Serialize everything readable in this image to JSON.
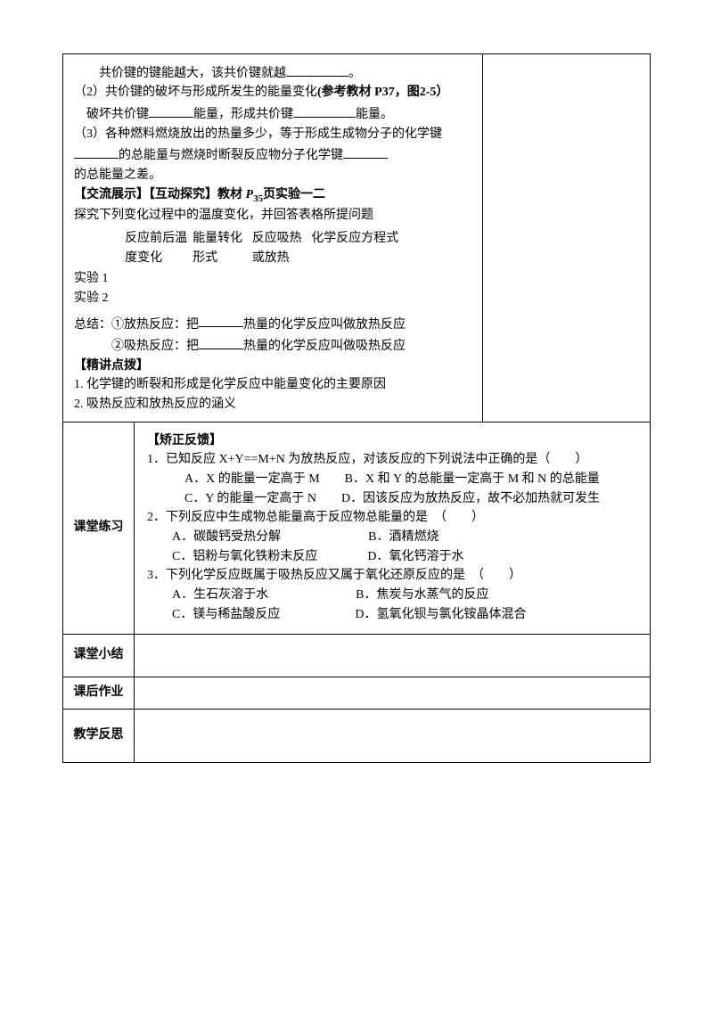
{
  "top": {
    "line1_indent": "共价键的键能越大，该共价键就越",
    "line1_end": "。",
    "line2": "（2）共价键的破坏与形成所发生的能量变化",
    "line2_bold": "(参考教材 P37，图2-5）",
    "line3_a": "破坏共价键",
    "line3_b": "能量，形成共价键",
    "line3_c": "能量。",
    "line4": "（3）各种燃料燃烧放出的热量多少，等于形成生成物分子的化学键",
    "line4_b": "的总能量与燃烧时断裂反应物分子化学键",
    "line5": "的总能量之差。",
    "ex_title_a": "【交流展示】【互动探究】教材 ",
    "ex_title_b": "P",
    "ex_title_sub": "35",
    "ex_title_c": "页实验一二",
    "ex_intro": "探究下列变化过程中的温度变化，并回答表格所提问题",
    "th1": "反应前后温度变化",
    "th2": "能量转化形式",
    "th3": "反应吸热或放热",
    "th4": "化学反应方程式",
    "row1": "实验 1",
    "row2": "实验 2",
    "summary1_a": "总结：①放热反应：把",
    "summary1_b": "热量的化学反应叫做放热反应",
    "summary2_a": "②吸热反应：把",
    "summary2_b": "热量的化学反应叫做吸热反应",
    "jj_title": "【精讲点拨】",
    "jj1": "1. 化学键的断裂和形成是化学反应中能量变化的主要原因",
    "jj2": "2. 吸热反应和放热反应的涵义"
  },
  "practice": {
    "header": "课堂练习",
    "title": "【矫正反馈】",
    "q1_a": "1．已知反应 X+Y==M+N 为放热反应，对该反应的下列说法中正确的是（　　）",
    "q1_opt1": "A．X 的能量一定高于 M　　B．X 和 Y 的总能量一定高于 M 和 N 的总能量",
    "q1_opt2": "C．Y 的能量一定高于 N　　D．因该反应为放热反应，故不必加热就可发生",
    "q2": "2．下列反应中生成物总能量高于反应物总能量的是　（　　）",
    "q2_opt1": "A．碳酸钙受热分解　　　　　　　B．酒精燃烧",
    "q2_opt2": "C．铝粉与氧化铁粉末反应　　　　D．氧化钙溶于水",
    "q3": "3．下列化学反应既属于吸热反应又属于氧化还原反应的是　（　　）",
    "q3_opt1": "A．生石灰溶于水　　　　　　　B．焦炭与水蒸气的反应",
    "q3_opt2": "C．镁与稀盐酸反应　　　　　　D．氢氧化钡与氯化铵晶体混合"
  },
  "rows": {
    "summary": "课堂小结",
    "homework": "课后作业",
    "reflection": "教学反思"
  }
}
